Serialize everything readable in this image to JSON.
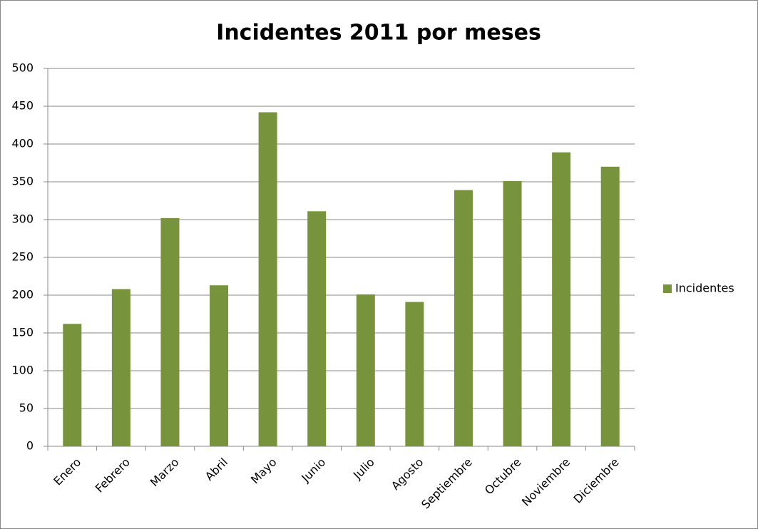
{
  "chart_data": {
    "type": "bar",
    "title": "Incidentes 2011 por meses",
    "categories": [
      "Enero",
      "Febrero",
      "Marzo",
      "Abril",
      "Mayo",
      "Junio",
      "Julio",
      "Agosto",
      "Septiembre",
      "Octubre",
      "Noviembre",
      "Diciembre"
    ],
    "series": [
      {
        "name": "Incidentes",
        "color": "#77933c",
        "values": [
          162,
          208,
          302,
          213,
          442,
          311,
          201,
          191,
          339,
          351,
          389,
          370
        ]
      }
    ],
    "ylim": [
      0,
      500
    ],
    "yticks": [
      0,
      50,
      100,
      150,
      200,
      250,
      300,
      350,
      400,
      450,
      500
    ],
    "grid": true,
    "legend": "right"
  }
}
